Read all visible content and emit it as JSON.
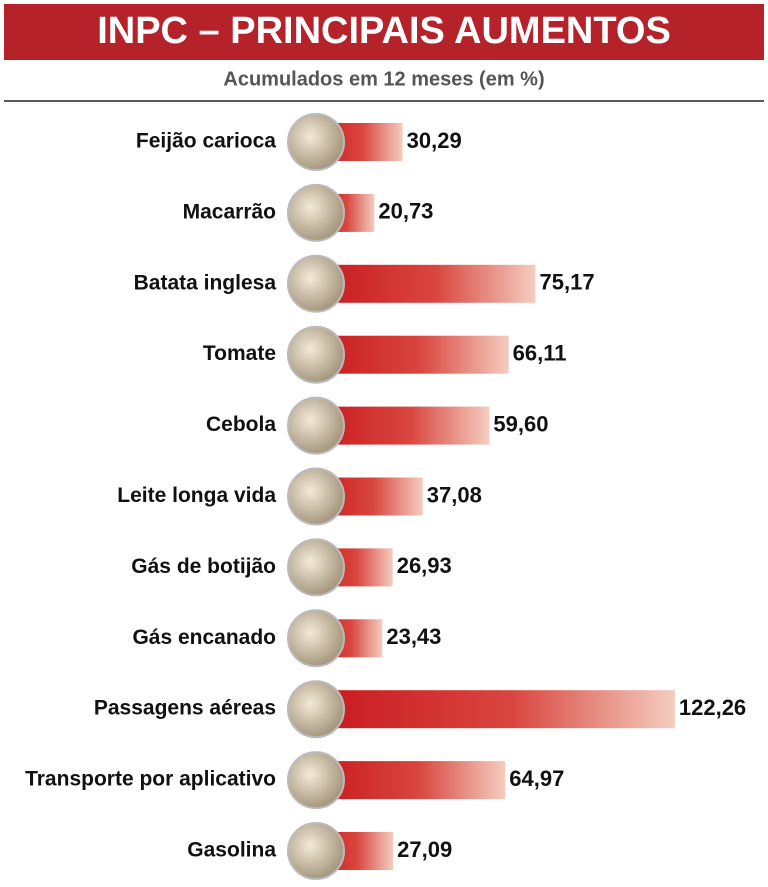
{
  "chart_data": {
    "type": "bar",
    "title": "INPC – PRINCIPAIS AUMENTOS",
    "subtitle": "Acumulados em 12 meses (em %)",
    "categories": [
      "Feijão carioca",
      "Macarrão",
      "Batata inglesa",
      "Tomate",
      "Cebola",
      "Leite longa vida",
      "Gás de botijão",
      "Gás encanado",
      "Passagens aéreas",
      "Transporte por aplicativo",
      "Gasolina"
    ],
    "values": [
      30.29,
      20.73,
      75.17,
      66.11,
      59.6,
      37.08,
      26.93,
      23.43,
      122.26,
      64.97,
      27.09
    ],
    "value_labels": [
      "30,29",
      "20,73",
      "75,17",
      "66,11",
      "59,60",
      "37,08",
      "26,93",
      "23,43",
      "122,26",
      "64,97",
      "27,09"
    ],
    "color": "#c8171d"
  }
}
